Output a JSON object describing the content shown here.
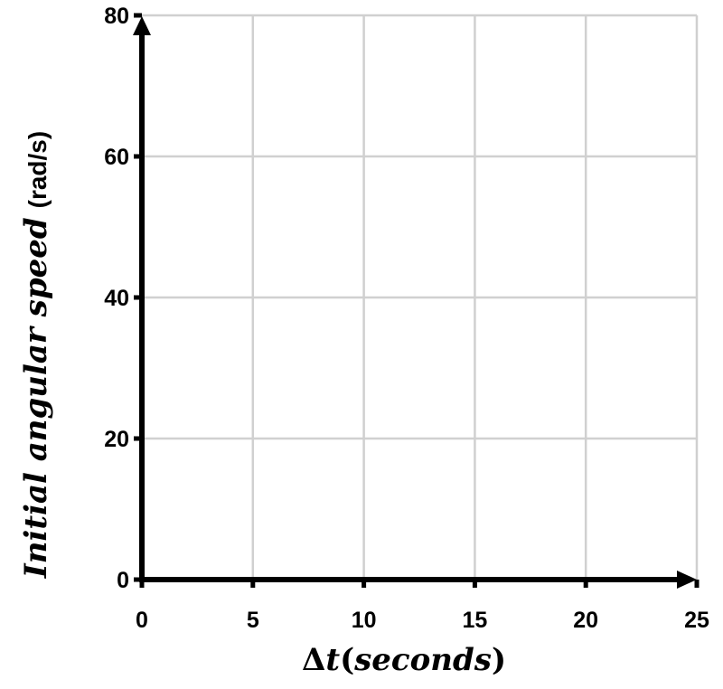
{
  "chart_data": {
    "type": "scatter",
    "x_range": [
      0,
      25
    ],
    "y_range": [
      0,
      80
    ],
    "x_ticks": [
      0,
      5,
      10,
      15,
      20,
      25
    ],
    "y_ticks": [
      0,
      20,
      40,
      60,
      80
    ],
    "x_tick_labels": [
      "0",
      "5",
      "10",
      "15",
      "20",
      "25"
    ],
    "y_tick_labels": [
      "0",
      "20",
      "40",
      "60",
      "80"
    ],
    "xlabel": {
      "delta": "Δ",
      "math": "t",
      "open_paren": "(",
      "math_text": "seconds",
      "close_paren": ")"
    },
    "ylabel": {
      "math": "Initial angular speed",
      "unit": "(rad/s)"
    },
    "grid": true,
    "series": [],
    "colors": {
      "axis": "#000000",
      "grid": "#d0d0d0",
      "background": "#ffffff"
    }
  }
}
